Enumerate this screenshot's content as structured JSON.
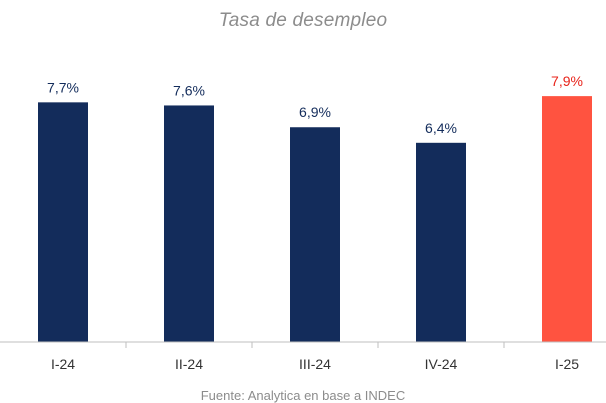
{
  "chart_data": {
    "type": "bar",
    "title": "Tasa de desempleo",
    "source": "Fuente: Analytica en base a INDEC",
    "xlabel": "",
    "ylabel": "",
    "categories": [
      "I-24",
      "II-24",
      "III-24",
      "IV-24",
      "I-25"
    ],
    "values": [
      7.7,
      7.6,
      6.9,
      6.4,
      7.9
    ],
    "data_labels": [
      "7,7%",
      "7,6%",
      "6,9%",
      "6,4%",
      "7,9%"
    ],
    "ylim": [
      0,
      8.45
    ],
    "grid": false,
    "legend": "none",
    "bar_colors": [
      "#132c5b",
      "#132c5b",
      "#132c5b",
      "#132c5b",
      "#ff5340"
    ],
    "label_colors": [
      "#132c5b",
      "#132c5b",
      "#132c5b",
      "#132c5b",
      "#e8231a"
    ],
    "axis_color": "#bfbfbf"
  }
}
